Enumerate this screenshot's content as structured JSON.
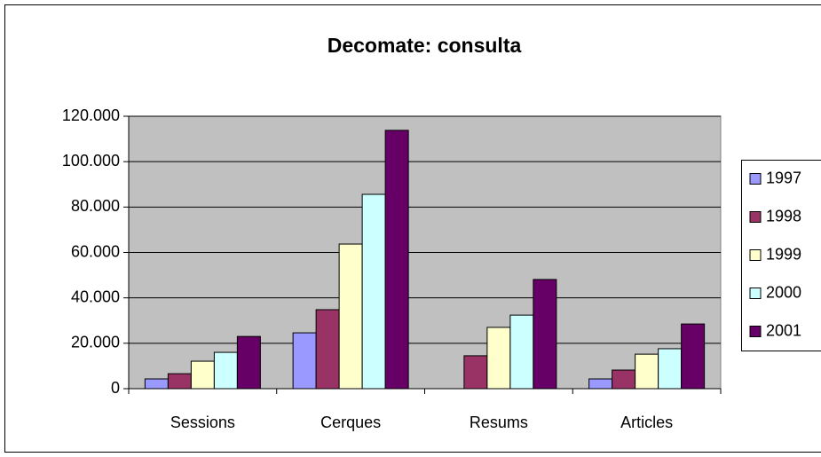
{
  "chart_data": {
    "type": "bar",
    "title": "Decomate: consulta",
    "categories": [
      "Sessions",
      "Cerques",
      "Resums",
      "Articles"
    ],
    "series": [
      {
        "name": "1997",
        "color": "#9999ff",
        "values": [
          4300,
          24600,
          null,
          4300
        ]
      },
      {
        "name": "1998",
        "color": "#993366",
        "values": [
          6600,
          34800,
          14500,
          8200
        ]
      },
      {
        "name": "1999",
        "color": "#ffffcc",
        "values": [
          12100,
          63700,
          27000,
          15200
        ]
      },
      {
        "name": "2000",
        "color": "#ccffff",
        "values": [
          16000,
          85600,
          32400,
          17600
        ]
      },
      {
        "name": "2001",
        "color": "#660066",
        "values": [
          23000,
          113800,
          48100,
          28500
        ]
      }
    ],
    "ylim": [
      0,
      120000
    ],
    "yticks": [
      0,
      {
        "value": 20000,
        "label": "20.000"
      },
      {
        "value": 40000,
        "label": "40.000"
      },
      {
        "value": 60000,
        "label": "60.000"
      },
      {
        "value": 80000,
        "label": "80.000"
      },
      {
        "value": 100000,
        "label": "100.000"
      },
      {
        "value": 120000,
        "label": "120.000"
      }
    ],
    "grid": true,
    "plot_background": "#c0c0c0",
    "legend": "right"
  }
}
